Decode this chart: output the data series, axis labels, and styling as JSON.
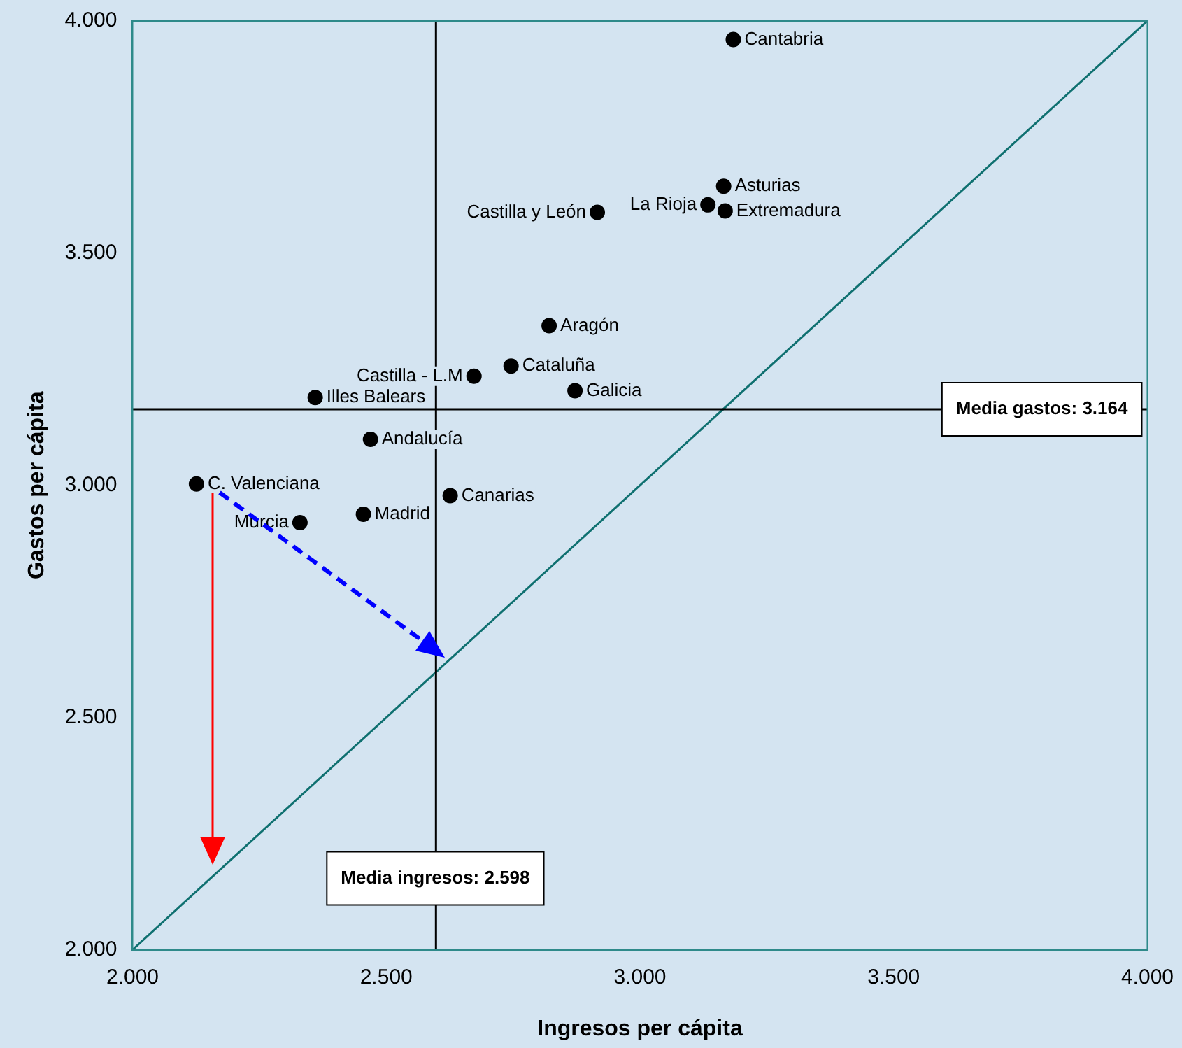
{
  "chart_data": {
    "type": "scatter",
    "xlabel": "Ingresos per cápita",
    "ylabel": "Gastos per cápita",
    "xlim": [
      2000,
      4000
    ],
    "ylim": [
      2000,
      4000
    ],
    "xticks": [
      {
        "value": 2000,
        "label": "2.000"
      },
      {
        "value": 2500,
        "label": "2.500"
      },
      {
        "value": 3000,
        "label": "3.000"
      },
      {
        "value": 3500,
        "label": "3.500"
      },
      {
        "value": 4000,
        "label": "4.000"
      }
    ],
    "yticks": [
      {
        "value": 2000,
        "label": "2.000"
      },
      {
        "value": 2500,
        "label": "2.500"
      },
      {
        "value": 3000,
        "label": "3.000"
      },
      {
        "value": 3500,
        "label": "3.500"
      },
      {
        "value": 4000,
        "label": "4.000"
      }
    ],
    "grid": false,
    "legend": false,
    "marker": "circle",
    "series": [
      {
        "name": "Cantabria",
        "color": "#000000",
        "x": [
          3184
        ],
        "values": [
          3960
        ]
      },
      {
        "name": "Asturias",
        "color": "#000000",
        "x": [
          3165
        ],
        "values": [
          3644
        ]
      },
      {
        "name": "La Rioja",
        "color": "#000000",
        "x": [
          3134
        ],
        "values": [
          3604
        ]
      },
      {
        "name": "Extremadura",
        "color": "#000000",
        "x": [
          3168
        ],
        "values": [
          3591
        ]
      },
      {
        "name": "Castilla y León",
        "color": "#000000",
        "x": [
          2916
        ],
        "values": [
          3588
        ]
      },
      {
        "name": "Aragón",
        "color": "#000000",
        "x": [
          2821
        ],
        "values": [
          3344
        ]
      },
      {
        "name": "Cataluña",
        "color": "#000000",
        "x": [
          2746
        ],
        "values": [
          3257
        ]
      },
      {
        "name": "Castilla - L.M",
        "color": "#000000",
        "x": [
          2673
        ],
        "values": [
          3235
        ]
      },
      {
        "name": "Galicia",
        "color": "#000000",
        "x": [
          2872
        ],
        "values": [
          3204
        ]
      },
      {
        "name": "Illes Balears",
        "color": "#000000",
        "x": [
          2360
        ],
        "values": [
          3189
        ]
      },
      {
        "name": "Andalucía",
        "color": "#000000",
        "x": [
          2469
        ],
        "values": [
          3099
        ]
      },
      {
        "name": "C. Valenciana",
        "color": "#000000",
        "x": [
          2126
        ],
        "values": [
          3003
        ]
      },
      {
        "name": "Canarias",
        "color": "#000000",
        "x": [
          2626
        ],
        "values": [
          2978
        ]
      },
      {
        "name": "Madrid",
        "color": "#000000",
        "x": [
          2455
        ],
        "values": [
          2938
        ]
      },
      {
        "name": "Murcia",
        "color": "#000000",
        "x": [
          2330
        ],
        "values": [
          2920
        ]
      },
      {
        "type": "line",
        "color": "#0f7070",
        "marker": "none",
        "x": [
          2000,
          4000
        ],
        "values": [
          2000,
          4000
        ]
      }
    ],
    "ref_lines": [
      {
        "axis": "y",
        "value": 3164,
        "label": "Media gastos: 3.164",
        "color": "#000000"
      },
      {
        "axis": "x",
        "value": 2598,
        "label": "Media ingresos: 2.598",
        "color": "#000000"
      }
    ]
  }
}
